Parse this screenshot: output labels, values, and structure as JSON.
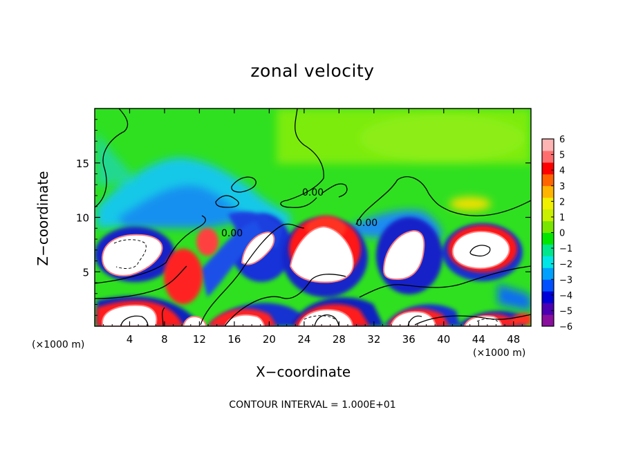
{
  "chart_data": {
    "type": "heatmap",
    "title": "zonal velocity",
    "xlabel": "X−coordinate",
    "ylabel": "Z−coordinate",
    "x_unit_label": "(×1000 m)",
    "x_unit_label_right": "(×1000 m)",
    "xlim": [
      0,
      50
    ],
    "ylim": [
      0,
      20
    ],
    "x_ticks": [
      4,
      8,
      12,
      16,
      20,
      24,
      28,
      32,
      36,
      40,
      44,
      48
    ],
    "x_tick_labels": [
      "4",
      "8",
      "12",
      "16",
      "20",
      "24",
      "28",
      "32",
      "36",
      "40",
      "44",
      "48"
    ],
    "y_ticks": [
      5,
      10,
      15
    ],
    "y_tick_labels": [
      "5",
      "10",
      "15"
    ],
    "colorbar": {
      "min": -6,
      "max": 6,
      "ticks": [
        6,
        5,
        4,
        3,
        2,
        1,
        0,
        -1,
        -2,
        -3,
        -4,
        -5,
        -6
      ],
      "tick_labels": [
        "6",
        "5",
        "4",
        "3",
        "2",
        "1",
        "0",
        "−1",
        "−2",
        "−3",
        "−4",
        "−5",
        "−6"
      ],
      "colors": [
        "#8a0f9e",
        "#4b00b4",
        "#0000d8",
        "#0050ff",
        "#00a0ff",
        "#00e6e6",
        "#00e68c",
        "#00e600",
        "#78e600",
        "#c8f000",
        "#f0f000",
        "#ffb400",
        "#ff6400",
        "#ff0000",
        "#ff6e6e",
        "#ffb4b4"
      ]
    },
    "contour_labels": [
      "0.00",
      "0.00",
      "0.00"
    ],
    "contour_note": "CONTOUR INTERVAL = 1.000E+01",
    "grid": false
  }
}
